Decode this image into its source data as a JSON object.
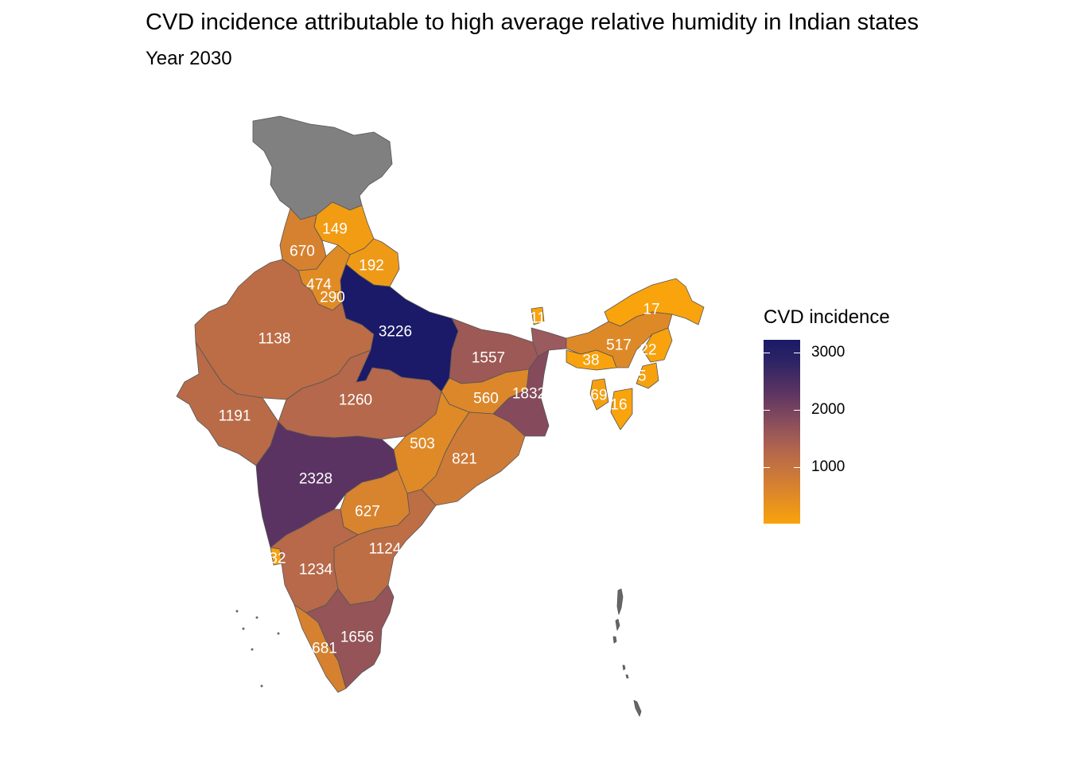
{
  "title": "CVD incidence attributable to high average relative humidity in Indian states",
  "subtitle": "Year 2030",
  "legend": {
    "title": "CVD incidence",
    "ticks": [
      "1000",
      "2000",
      "3000"
    ],
    "low_color": "#F9A30D",
    "high_color": "#1A1A68",
    "no_data_color": "#808080"
  },
  "map_data": {
    "type": "choropleth",
    "regions": [
      {
        "name": "Jammu and Kashmir",
        "value": null,
        "label": ""
      },
      {
        "name": "Himachal Pradesh",
        "value": 149,
        "label": "149"
      },
      {
        "name": "Punjab",
        "value": 670,
        "label": "670"
      },
      {
        "name": "Uttarakhand",
        "value": 192,
        "label": "192"
      },
      {
        "name": "Haryana",
        "value": 474,
        "label": "474"
      },
      {
        "name": "Delhi",
        "value": 290,
        "label": "290"
      },
      {
        "name": "Rajasthan",
        "value": 1138,
        "label": "1138"
      },
      {
        "name": "Uttar Pradesh",
        "value": 3226,
        "label": "3226"
      },
      {
        "name": "Bihar",
        "value": 1557,
        "label": "1557"
      },
      {
        "name": "Sikkim",
        "value": 11,
        "label": "11"
      },
      {
        "name": "Arunachal Pradesh",
        "value": 17,
        "label": "17"
      },
      {
        "name": "Assam",
        "value": 517,
        "label": "517"
      },
      {
        "name": "Nagaland",
        "value": 22,
        "label": "22"
      },
      {
        "name": "Meghalaya",
        "value": 38,
        "label": "38"
      },
      {
        "name": "Manipur",
        "value": 55,
        "label": "55"
      },
      {
        "name": "Tripura",
        "value": 69,
        "label": "69"
      },
      {
        "name": "Mizoram",
        "value": 16,
        "label": "16"
      },
      {
        "name": "Gujarat",
        "value": 1191,
        "label": "1191"
      },
      {
        "name": "Madhya Pradesh",
        "value": 1260,
        "label": "1260"
      },
      {
        "name": "Jharkhand",
        "value": 560,
        "label": "560"
      },
      {
        "name": "West Bengal",
        "value": 1832,
        "label": "1832"
      },
      {
        "name": "Chhattisgarh",
        "value": 503,
        "label": "503"
      },
      {
        "name": "Odisha",
        "value": 821,
        "label": "821"
      },
      {
        "name": "Maharashtra",
        "value": 2328,
        "label": "2328"
      },
      {
        "name": "Telangana",
        "value": 627,
        "label": "627"
      },
      {
        "name": "Andhra Pradesh",
        "value": 1124,
        "label": "1124"
      },
      {
        "name": "Goa",
        "value": 32,
        "label": "32"
      },
      {
        "name": "Karnataka",
        "value": 1234,
        "label": "1234"
      },
      {
        "name": "Kerala",
        "value": 681,
        "label": "681"
      },
      {
        "name": "Tamil Nadu",
        "value": 1656,
        "label": "1656"
      }
    ]
  }
}
